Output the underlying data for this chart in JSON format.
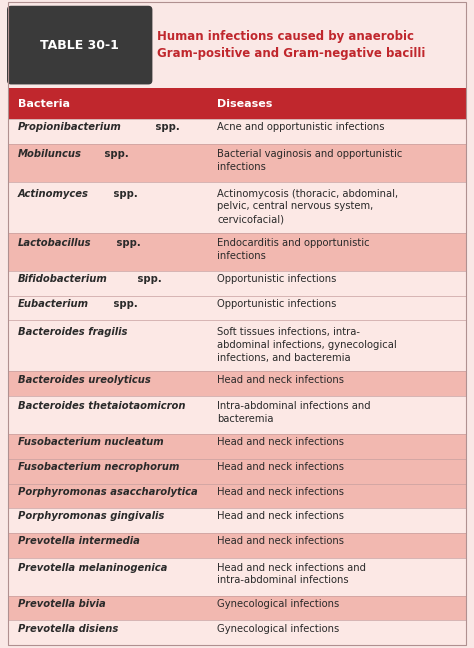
{
  "title_line1": "Human infections caused by anaerobic",
  "title_line2": "Gram-positive and Gram-negative bacilli",
  "table_label": "TABLE 30-1",
  "col_headers": [
    "Bacteria",
    "Diseases"
  ],
  "rows": [
    {
      "bacteria_italic": "Propionibacterium",
      "bacteria_rest": " spp.",
      "disease": "Acne and opportunistic infections",
      "shade": "white"
    },
    {
      "bacteria_italic": "Mobiluncus",
      "bacteria_rest": " spp.",
      "disease": "Bacterial vaginosis and opportunistic\ninfections",
      "shade": "pink"
    },
    {
      "bacteria_italic": "Actinomyces",
      "bacteria_rest": " spp.",
      "disease": "Actinomycosis (thoracic, abdominal,\npelvic, central nervous system,\ncervicofacial)",
      "shade": "white"
    },
    {
      "bacteria_italic": "Lactobacillus",
      "bacteria_rest": " spp.",
      "disease": "Endocarditis and opportunistic\ninfections",
      "shade": "pink"
    },
    {
      "bacteria_italic": "Bifidobacterium",
      "bacteria_rest": " spp.",
      "disease": "Opportunistic infections",
      "shade": "white"
    },
    {
      "bacteria_italic": "Eubacterium",
      "bacteria_rest": " spp.",
      "disease": "Opportunistic infections",
      "shade": "white"
    },
    {
      "bacteria_italic": "Bacteroides fragilis",
      "bacteria_rest": "",
      "disease": "Soft tissues infections, intra-\nabdominal infections, gynecological\ninfections, and bacteremia",
      "shade": "white"
    },
    {
      "bacteria_italic": "Bacteroides ureolyticus",
      "bacteria_rest": "",
      "disease": "Head and neck infections",
      "shade": "pink"
    },
    {
      "bacteria_italic": "Bacteroides thetaiotaomicron",
      "bacteria_rest": "",
      "disease": "Intra-abdominal infections and\nbacteremia",
      "shade": "white"
    },
    {
      "bacteria_italic": "Fusobacterium nucleatum",
      "bacteria_rest": "",
      "disease": "Head and neck infections",
      "shade": "pink"
    },
    {
      "bacteria_italic": "Fusobacterium necrophorum",
      "bacteria_rest": "",
      "disease": "Head and neck infections",
      "shade": "pink"
    },
    {
      "bacteria_italic": "Porphyromonas asaccharolytica",
      "bacteria_rest": "",
      "disease": "Head and neck infections",
      "shade": "pink"
    },
    {
      "bacteria_italic": "Porphyromonas gingivalis",
      "bacteria_rest": "",
      "disease": "Head and neck infections",
      "shade": "white"
    },
    {
      "bacteria_italic": "Prevotella intermedia",
      "bacteria_rest": "",
      "disease": "Head and neck infections",
      "shade": "pink"
    },
    {
      "bacteria_italic": "Prevotella melaninogenica",
      "bacteria_rest": "",
      "disease": "Head and neck infections and\nintra-abdominal infections",
      "shade": "white"
    },
    {
      "bacteria_italic": "Prevotella bivia",
      "bacteria_rest": "",
      "disease": "Gynecological infections",
      "shade": "pink"
    },
    {
      "bacteria_italic": "Prevotella disiens",
      "bacteria_rest": "",
      "disease": "Gynecological infections",
      "shade": "white"
    }
  ],
  "color_header_bg": "#c0272d",
  "color_title_bg": "#fae8e6",
  "color_table_label_bg": "#3a3a3a",
  "color_row_pink": "#f2b8b0",
  "color_row_white": "#fce8e5",
  "color_title_text": "#c0272d",
  "color_header_text": "#ffffff",
  "color_body_text": "#2a2a2a",
  "col_split": 0.435,
  "font_size": 7.2,
  "header_font_size": 8.0,
  "title_font_size": 8.5,
  "label_font_size": 9.0
}
